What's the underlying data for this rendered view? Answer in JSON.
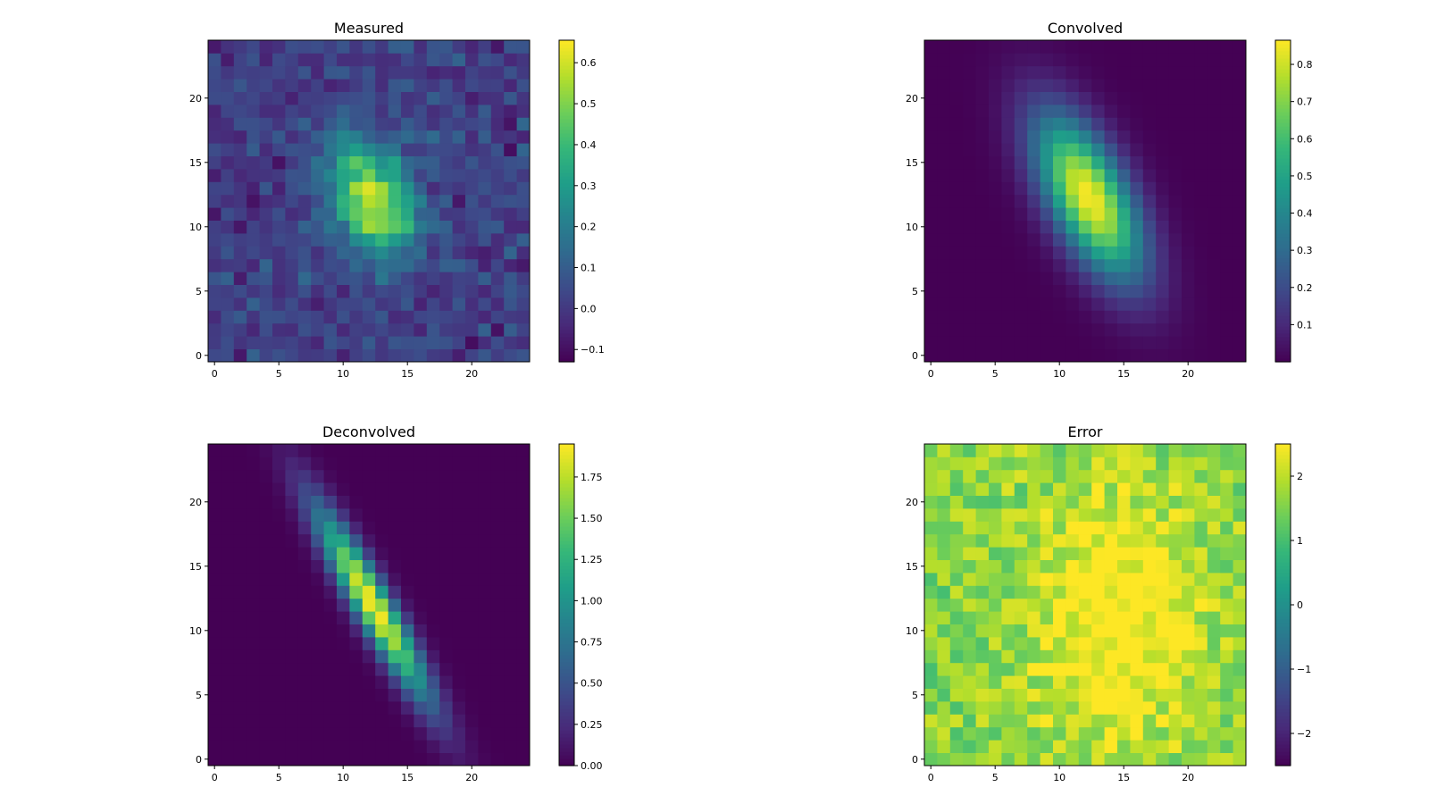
{
  "colormap": {
    "name": "viridis",
    "stops": [
      "#440154",
      "#482878",
      "#3e4989",
      "#31688e",
      "#26828e",
      "#1f9e89",
      "#35b779",
      "#6ece58",
      "#b5de2b",
      "#fde725"
    ]
  },
  "chart_data": [
    {
      "type": "heatmap",
      "title": "Measured",
      "grid_size": 25,
      "origin": "lower",
      "xlim": [
        -0.5,
        24.5
      ],
      "ylim": [
        -0.5,
        24.5
      ],
      "xticks": [
        0,
        5,
        10,
        15,
        20
      ],
      "yticks": [
        0,
        5,
        10,
        15,
        20
      ],
      "vmin": -0.13,
      "vmax": 0.655,
      "colorbar_ticks": [
        {
          "value": -0.1,
          "label": "−0.1"
        },
        {
          "value": 0.0,
          "label": "0.0"
        },
        {
          "value": 0.1,
          "label": "0.1"
        },
        {
          "value": 0.2,
          "label": "0.2"
        },
        {
          "value": 0.3,
          "label": "0.3"
        },
        {
          "value": 0.4,
          "label": "0.4"
        },
        {
          "value": 0.5,
          "label": "0.5"
        },
        {
          "value": 0.6,
          "label": "0.6"
        }
      ],
      "model": {
        "kind": "noisy_gaussian",
        "cx": 12.3,
        "cy": 12.2,
        "sx": 2.4,
        "sy": 3.2,
        "rho": -0.35,
        "amp": 0.55,
        "base": 0.02,
        "noise": 0.06,
        "seed": 7
      }
    },
    {
      "type": "heatmap",
      "title": "Convolved",
      "grid_size": 25,
      "origin": "lower",
      "xlim": [
        -0.5,
        24.5
      ],
      "ylim": [
        -0.5,
        24.5
      ],
      "xticks": [
        0,
        5,
        10,
        15,
        20
      ],
      "yticks": [
        0,
        5,
        10,
        15,
        20
      ],
      "vmin": 0.0,
      "vmax": 0.865,
      "colorbar_ticks": [
        {
          "value": 0.1,
          "label": "0.1"
        },
        {
          "value": 0.2,
          "label": "0.2"
        },
        {
          "value": 0.3,
          "label": "0.3"
        },
        {
          "value": 0.4,
          "label": "0.4"
        },
        {
          "value": 0.5,
          "label": "0.5"
        },
        {
          "value": 0.6,
          "label": "0.6"
        },
        {
          "value": 0.7,
          "label": "0.7"
        },
        {
          "value": 0.8,
          "label": "0.8"
        }
      ],
      "model": {
        "kind": "gaussian",
        "cx": 12.3,
        "cy": 12.3,
        "sx": 2.9,
        "sy": 4.4,
        "rho": -0.62,
        "amp": 0.86,
        "base": 0.0
      }
    },
    {
      "type": "heatmap",
      "title": "Deconvolved",
      "grid_size": 25,
      "origin": "lower",
      "xlim": [
        -0.5,
        24.5
      ],
      "ylim": [
        -0.5,
        24.5
      ],
      "xticks": [
        0,
        5,
        10,
        15,
        20
      ],
      "yticks": [
        0,
        5,
        10,
        15,
        20
      ],
      "vmin": 0.0,
      "vmax": 1.95,
      "colorbar_ticks": [
        {
          "value": 0.0,
          "label": "0.00"
        },
        {
          "value": 0.25,
          "label": "0.25"
        },
        {
          "value": 0.5,
          "label": "0.50"
        },
        {
          "value": 0.75,
          "label": "0.75"
        },
        {
          "value": 1.0,
          "label": "1.00"
        },
        {
          "value": 1.25,
          "label": "1.25"
        },
        {
          "value": 1.5,
          "label": "1.50"
        },
        {
          "value": 1.75,
          "label": "1.75"
        }
      ],
      "model": {
        "kind": "gaussian",
        "cx": 12.3,
        "cy": 12.0,
        "sx": 3.1,
        "sy": 5.2,
        "rho": -0.93,
        "amp": 1.95,
        "base": 0.0
      }
    },
    {
      "type": "heatmap",
      "title": "Error",
      "grid_size": 25,
      "origin": "lower",
      "xlim": [
        -0.5,
        24.5
      ],
      "ylim": [
        -0.5,
        24.5
      ],
      "xticks": [
        0,
        5,
        10,
        15,
        20
      ],
      "yticks": [
        0,
        5,
        10,
        15,
        20
      ],
      "vmin": -2.5,
      "vmax": 2.5,
      "colorbar_ticks": [
        {
          "value": -2,
          "label": "−2"
        },
        {
          "value": -1,
          "label": "−1"
        },
        {
          "value": 0,
          "label": "0"
        },
        {
          "value": 1,
          "label": "1"
        },
        {
          "value": 2,
          "label": "2"
        }
      ],
      "model": {
        "kind": "noisy_error",
        "cx": 14.5,
        "cy": 11.0,
        "sx": 4.5,
        "sy": 7.0,
        "rho": 0.0,
        "amp": 1.2,
        "base": 1.4,
        "noise": 0.55,
        "seed": 23,
        "clip": 2.5
      }
    }
  ]
}
